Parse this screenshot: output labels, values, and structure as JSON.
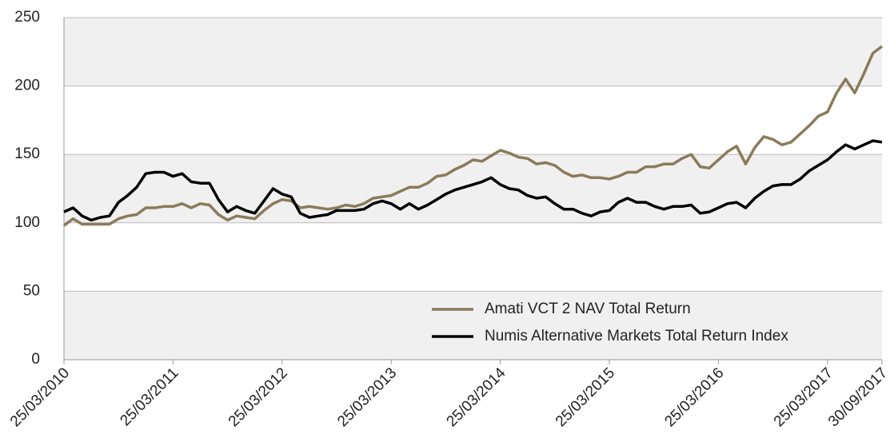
{
  "chart_data": {
    "type": "line",
    "categories": [
      "25/03/2010",
      null,
      null,
      null,
      null,
      null,
      null,
      null,
      null,
      null,
      null,
      null,
      "25/03/2011",
      null,
      null,
      null,
      null,
      null,
      null,
      null,
      null,
      null,
      null,
      null,
      "25/03/2012",
      null,
      null,
      null,
      null,
      null,
      null,
      null,
      null,
      null,
      null,
      null,
      "25/03/2013",
      null,
      null,
      null,
      null,
      null,
      null,
      null,
      null,
      null,
      null,
      null,
      "25/03/2014",
      null,
      null,
      null,
      null,
      null,
      null,
      null,
      null,
      null,
      null,
      null,
      "25/03/2015",
      null,
      null,
      null,
      null,
      null,
      null,
      null,
      null,
      null,
      null,
      null,
      "25/03/2016",
      null,
      null,
      null,
      null,
      null,
      null,
      null,
      null,
      null,
      null,
      null,
      "25/03/2017",
      null,
      null,
      null,
      null,
      null,
      "30/09/2017"
    ],
    "series": [
      {
        "name": "Amati VCT 2 NAV Total Return",
        "color": "#8b7b5a",
        "values": [
          98,
          103,
          99,
          99,
          99,
          99,
          103,
          105,
          106,
          111,
          111,
          112,
          112,
          114,
          111,
          114,
          113,
          106,
          102,
          105,
          104,
          103,
          109,
          114,
          117,
          116,
          111,
          112,
          111,
          110,
          111,
          113,
          112,
          114,
          118,
          119,
          120,
          123,
          126,
          126,
          129,
          134,
          135,
          139,
          142,
          146,
          145,
          149,
          153,
          151,
          148,
          147,
          143,
          144,
          142,
          137,
          134,
          135,
          133,
          133,
          132,
          134,
          137,
          137,
          141,
          141,
          143,
          143,
          147,
          150,
          141,
          140,
          146,
          152,
          156,
          143,
          155,
          163,
          161,
          157,
          159,
          165,
          171,
          178,
          181,
          195,
          205,
          195,
          209,
          224,
          229
        ]
      },
      {
        "name": "Numis Alternative Markets Total Return Index",
        "color": "#000000",
        "values": [
          108,
          111,
          105,
          102,
          104,
          105,
          115,
          120,
          126,
          136,
          137,
          137,
          134,
          136,
          130,
          129,
          129,
          117,
          108,
          112,
          109,
          107,
          116,
          125,
          121,
          119,
          107,
          104,
          105,
          106,
          109,
          109,
          109,
          110,
          114,
          116,
          114,
          110,
          114,
          110,
          113,
          117,
          121,
          124,
          126,
          128,
          130,
          133,
          128,
          125,
          124,
          120,
          118,
          119,
          114,
          110,
          110,
          107,
          105,
          108,
          109,
          115,
          118,
          115,
          115,
          112,
          110,
          112,
          112,
          113,
          107,
          108,
          111,
          114,
          115,
          111,
          118,
          123,
          127,
          128,
          128,
          132,
          138,
          142,
          146,
          152,
          157,
          154,
          157,
          160,
          159
        ]
      }
    ],
    "ylim": [
      0,
      250
    ],
    "yticks": [
      0,
      50,
      100,
      150,
      200,
      250
    ],
    "grid": true,
    "band_color": "#f0f0f0",
    "legend": "lower right"
  }
}
